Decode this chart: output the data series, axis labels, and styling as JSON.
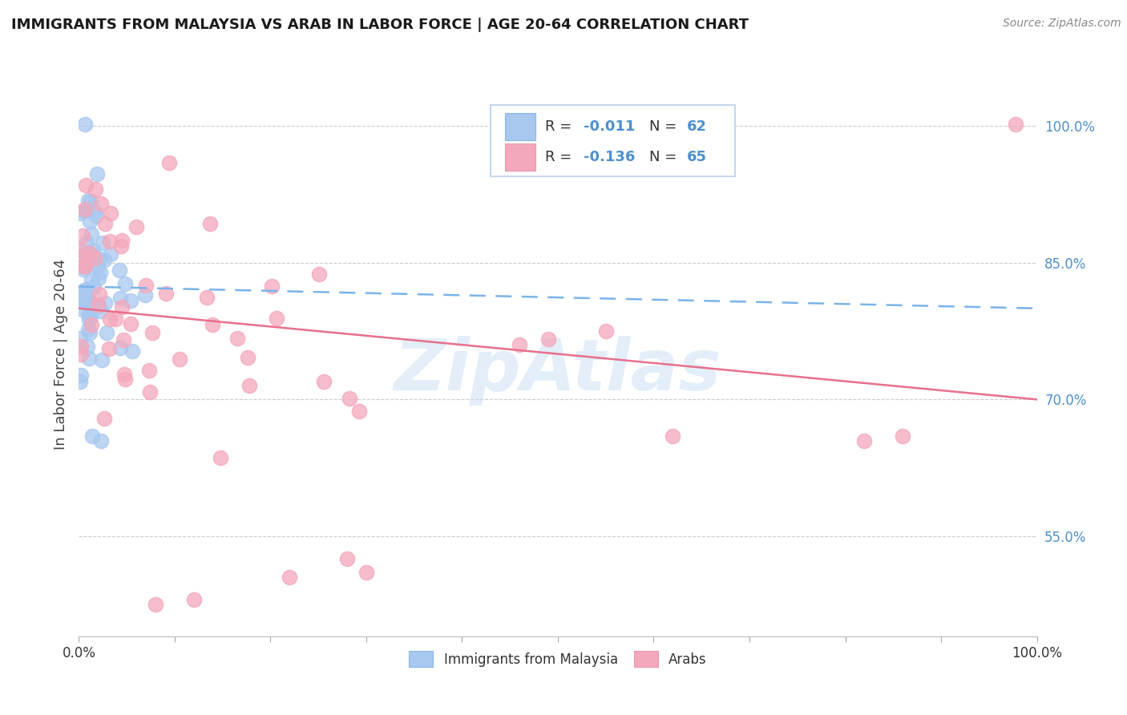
{
  "title": "IMMIGRANTS FROM MALAYSIA VS ARAB IN LABOR FORCE | AGE 20-64 CORRELATION CHART",
  "source": "Source: ZipAtlas.com",
  "ylabel": "In Labor Force | Age 20-64",
  "legend_label1": "Immigrants from Malaysia",
  "legend_label2": "Arabs",
  "yticks": [
    0.55,
    0.7,
    0.85,
    1.0
  ],
  "ytick_labels": [
    "55.0%",
    "70.0%",
    "85.0%",
    "100.0%"
  ],
  "xtick_labels": [
    "0.0%",
    "100.0%"
  ],
  "xlim": [
    0.0,
    1.0
  ],
  "ylim": [
    0.44,
    1.06
  ],
  "color_malaysia": "#a8c8f0",
  "color_arab": "#f4a8bc",
  "color_malaysia_line": "#7ab4e8",
  "color_arab_line": "#e8708c",
  "watermark": "ZipAtlas",
  "malaysia_intercept": 0.82,
  "malaysia_slope": -0.011,
  "arab_intercept": 0.8,
  "arab_slope": -0.136
}
